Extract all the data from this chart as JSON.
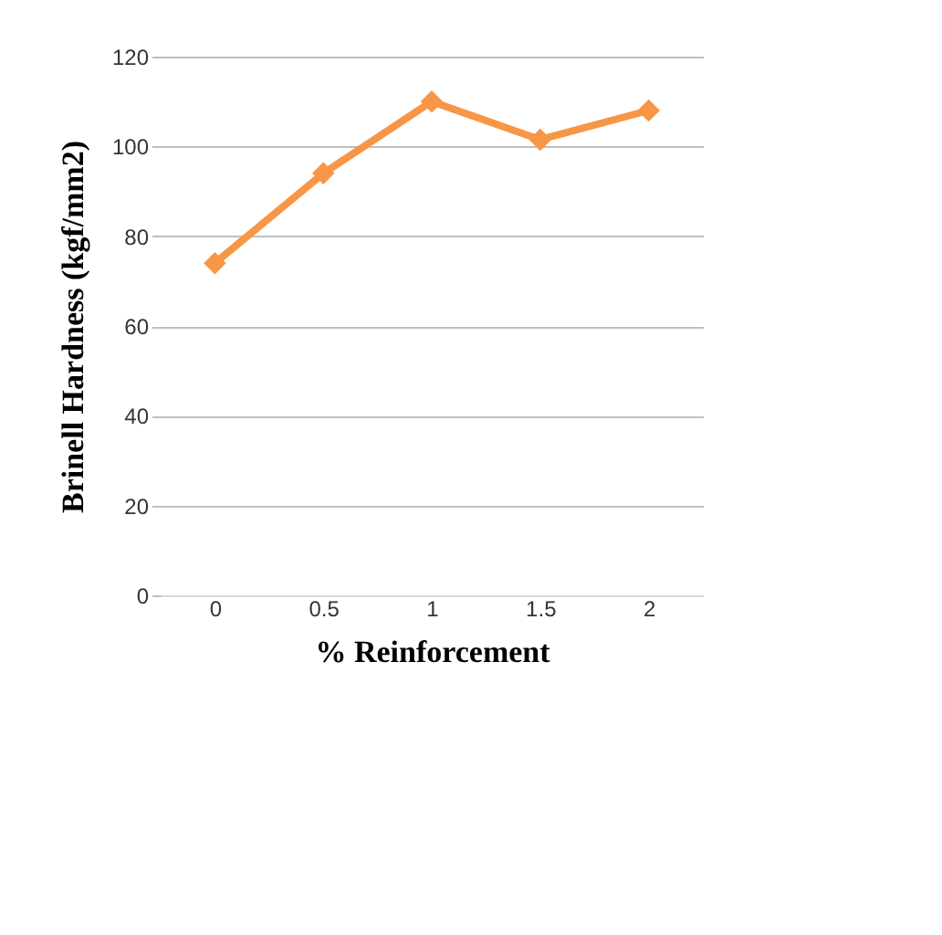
{
  "chart_data": {
    "type": "line",
    "xlabel": "% Reinforcement",
    "ylabel": "Brinell Hardness  (kgf/mm2)",
    "categories": [
      "0",
      "0.5",
      "1",
      "1.5",
      "2"
    ],
    "series": [
      {
        "color": "#f79646",
        "values": [
          74,
          94,
          110,
          101.5,
          108
        ]
      }
    ],
    "ylim": [
      0,
      120
    ],
    "yticks": [
      0,
      20,
      40,
      60,
      80,
      100,
      120
    ],
    "grid": "y",
    "marker": "diamond",
    "line_style": "solid",
    "legend": false
  }
}
